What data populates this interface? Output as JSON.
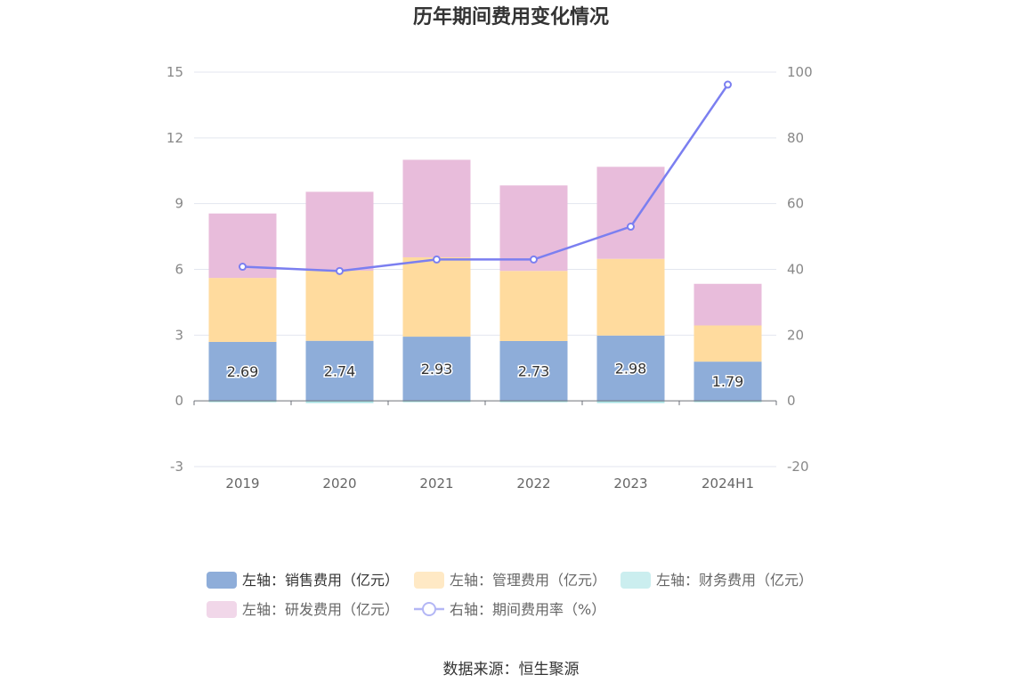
{
  "chart_data": {
    "type": "bar",
    "stacked": true,
    "title": "历年期间费用变化情况",
    "categories": [
      "2019",
      "2020",
      "2021",
      "2022",
      "2023",
      "2024H1"
    ],
    "left_axis": {
      "min": -3,
      "max": 15,
      "ticks": [
        "-3",
        "0",
        "3",
        "6",
        "9",
        "12",
        "15"
      ]
    },
    "right_axis": {
      "min": -20,
      "max": 100,
      "ticks": [
        "-20",
        "0",
        "20",
        "40",
        "60",
        "80",
        "100"
      ]
    },
    "series": [
      {
        "name": "左轴：销售费用（亿元）",
        "type": "bar",
        "axis": "left",
        "color": "#8eadd9",
        "values": [
          2.69,
          2.74,
          2.93,
          2.73,
          2.98,
          1.79
        ],
        "labels": [
          "2.69",
          "2.74",
          "2.93",
          "2.73",
          "2.98",
          "1.79"
        ]
      },
      {
        "name": "左轴：管理费用（亿元）",
        "type": "bar",
        "axis": "left",
        "color": "#ffdb9e",
        "values": [
          2.92,
          3.2,
          3.62,
          3.2,
          3.5,
          1.65
        ]
      },
      {
        "name": "左轴：财务费用（亿元）",
        "type": "bar",
        "axis": "left",
        "color": "#a8e2e4",
        "values": [
          -0.05,
          -0.1,
          -0.05,
          -0.02,
          -0.1,
          -0.03
        ]
      },
      {
        "name": "左轴：研发费用（亿元）",
        "type": "bar",
        "axis": "left",
        "color": "#e8bcdb",
        "values": [
          2.94,
          3.6,
          4.45,
          3.9,
          4.2,
          1.9
        ]
      },
      {
        "name": "右轴：期间费用率（%）",
        "type": "line",
        "axis": "right",
        "color": "#7b7ff0",
        "values": [
          40.8,
          39.5,
          43.0,
          43.0,
          53.0,
          96.2
        ]
      }
    ],
    "grid": true,
    "legend_position": "bottom"
  },
  "source": "数据来源：恒生聚源"
}
